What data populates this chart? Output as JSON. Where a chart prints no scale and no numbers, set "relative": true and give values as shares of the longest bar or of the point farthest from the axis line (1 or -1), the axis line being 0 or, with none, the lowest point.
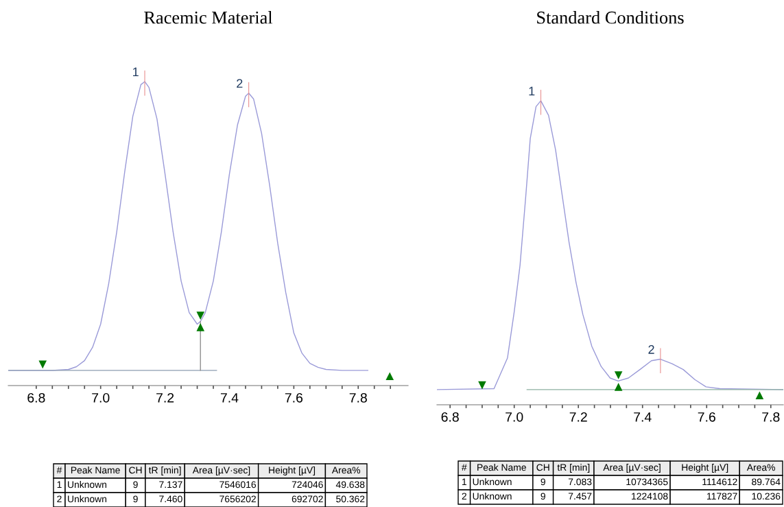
{
  "chart_data": [
    {
      "type": "line",
      "title": "Racemic Material",
      "relative": true,
      "tick_labels": "x",
      "xlim": [
        6.713,
        7.955
      ],
      "xticks": [
        {
          "value": 6.8,
          "label": "6.8"
        },
        {
          "value": 6.85,
          "label": null
        },
        {
          "value": 6.9,
          "label": null
        },
        {
          "value": 6.95,
          "label": null
        },
        {
          "value": 7.0,
          "label": "7.0"
        },
        {
          "value": 7.05,
          "label": null
        },
        {
          "value": 7.1,
          "label": null
        },
        {
          "value": 7.15,
          "label": null
        },
        {
          "value": 7.2,
          "label": "7.2"
        },
        {
          "value": 7.25,
          "label": null
        },
        {
          "value": 7.3,
          "label": null
        },
        {
          "value": 7.35,
          "label": null
        },
        {
          "value": 7.4,
          "label": "7.4"
        },
        {
          "value": 7.45,
          "label": null
        },
        {
          "value": 7.5,
          "label": null
        },
        {
          "value": 7.55,
          "label": null
        },
        {
          "value": 7.6,
          "label": "7.6"
        },
        {
          "value": 7.65,
          "label": null
        },
        {
          "value": 7.7,
          "label": null
        },
        {
          "value": 7.75,
          "label": null
        },
        {
          "value": 7.8,
          "label": "7.8"
        },
        {
          "value": 7.85,
          "label": null
        },
        {
          "value": 7.9,
          "label": null
        }
      ],
      "series": [
        {
          "color": "#9a9ad8",
          "x": [
            6.713,
            6.85,
            6.9,
            6.925,
            6.95,
            6.975,
            7.0,
            7.025,
            7.05,
            7.075,
            7.1,
            7.125,
            7.137,
            7.15,
            7.175,
            7.2,
            7.225,
            7.25,
            7.275,
            7.3,
            7.31,
            7.325,
            7.35,
            7.375,
            7.4,
            7.425,
            7.45,
            7.46,
            7.475,
            7.5,
            7.525,
            7.55,
            7.575,
            7.6,
            7.625,
            7.65,
            7.675,
            7.7,
            7.75,
            7.83
          ],
          "values": [
            0.05,
            0.05,
            0.053,
            0.062,
            0.082,
            0.126,
            0.202,
            0.335,
            0.506,
            0.705,
            0.886,
            0.99,
            1.0,
            0.981,
            0.877,
            0.696,
            0.506,
            0.344,
            0.24,
            0.202,
            0.211,
            0.24,
            0.344,
            0.506,
            0.696,
            0.857,
            0.952,
            0.962,
            0.943,
            0.829,
            0.658,
            0.468,
            0.306,
            0.173,
            0.107,
            0.073,
            0.06,
            0.053,
            0.05,
            0.05
          ]
        },
        {
          "color": "#8c9cb0",
          "x": [
            6.713,
            7.36
          ],
          "values": [
            0.05,
            0.05
          ]
        },
        {
          "color": "#909090",
          "x": [
            7.31,
            7.31
          ],
          "values": [
            0.05,
            0.211
          ]
        },
        {
          "type": "scatter",
          "marker": "triangle_down",
          "color": "#007a00",
          "x": [
            6.82,
            7.31
          ],
          "values": [
            0.069,
            0.23
          ]
        },
        {
          "type": "scatter",
          "marker": "triangle",
          "color": "#007a00",
          "x": [
            7.31,
            7.898
          ],
          "values": [
            0.192,
            0.031
          ]
        }
      ],
      "annotations": [
        {
          "text": "1",
          "x": 7.137,
          "y": 1.0
        },
        {
          "text": "2",
          "x": 7.46,
          "y": 0.962
        },
        "#",
        "Peak Name",
        "CH",
        "tR [min]",
        "Area [µV·sec]",
        "Height [µV]",
        "Area%",
        "1",
        "Unknown",
        "9",
        "7.137",
        "7546016",
        "724046",
        "49.638",
        "2",
        "Unknown",
        "9",
        "7.460",
        "7656202",
        "692702",
        "50.362"
      ]
    },
    {
      "type": "line",
      "title": "Standard Conditions",
      "relative": true,
      "tick_labels": "x",
      "xlim": [
        6.759,
        7.839
      ],
      "xticks": [
        {
          "value": 6.8,
          "label": "6.8"
        },
        {
          "value": 6.85,
          "label": null
        },
        {
          "value": 6.9,
          "label": null
        },
        {
          "value": 6.95,
          "label": null
        },
        {
          "value": 7.0,
          "label": "7.0"
        },
        {
          "value": 7.05,
          "label": null
        },
        {
          "value": 7.1,
          "label": null
        },
        {
          "value": 7.15,
          "label": null
        },
        {
          "value": 7.2,
          "label": "7.2"
        },
        {
          "value": 7.25,
          "label": null
        },
        {
          "value": 7.3,
          "label": null
        },
        {
          "value": 7.35,
          "label": null
        },
        {
          "value": 7.4,
          "label": "7.4"
        },
        {
          "value": 7.45,
          "label": null
        },
        {
          "value": 7.5,
          "label": null
        },
        {
          "value": 7.55,
          "label": null
        },
        {
          "value": 7.6,
          "label": "7.6"
        },
        {
          "value": 7.65,
          "label": null
        },
        {
          "value": 7.7,
          "label": null
        },
        {
          "value": 7.75,
          "label": null
        },
        {
          "value": 7.8,
          "label": "7.8"
        }
      ],
      "series": [
        {
          "color": "#9a9ad8",
          "x": [
            6.759,
            6.937,
            6.979,
            7.0,
            7.018,
            7.036,
            7.05,
            7.068,
            7.083,
            7.107,
            7.129,
            7.15,
            7.171,
            7.193,
            7.214,
            7.242,
            7.271,
            7.299,
            7.324,
            7.356,
            7.392,
            7.428,
            7.456,
            7.492,
            7.527,
            7.563,
            7.598,
            7.641,
            7.839
          ],
          "values": [
            0.05,
            0.053,
            0.154,
            0.306,
            0.458,
            0.686,
            0.876,
            0.981,
            1.0,
            0.952,
            0.838,
            0.686,
            0.534,
            0.401,
            0.297,
            0.192,
            0.126,
            0.088,
            0.078,
            0.088,
            0.116,
            0.145,
            0.15,
            0.135,
            0.116,
            0.083,
            0.059,
            0.053,
            0.05
          ]
        },
        {
          "color": "#8cb0a0",
          "x": [
            7.04,
            7.839
          ],
          "values": [
            0.05,
            0.05
          ]
        },
        {
          "type": "scatter",
          "marker": "triangle_down",
          "color": "#007a00",
          "x": [
            6.9,
            7.325
          ],
          "values": [
            0.064,
            0.097
          ]
        },
        {
          "type": "scatter",
          "marker": "triangle",
          "color": "#007a00",
          "x": [
            7.325,
            7.765
          ],
          "values": [
            0.059,
            0.031
          ]
        }
      ],
      "annotations": [
        {
          "text": "1",
          "x": 7.083,
          "y": 1.0
        },
        {
          "text": "2",
          "x": 7.456,
          "y": 0.15
        },
        "#",
        "Peak Name",
        "CH",
        "tR [min]",
        "Area [µV·sec]",
        "Height [µV]",
        "Area%",
        "1",
        "Unknown",
        "9",
        "7.083",
        "10734365",
        "1114612",
        "89.764",
        "2",
        "Unknown",
        "9",
        "7.457",
        "1224108",
        "117827",
        "10.236"
      ]
    }
  ]
}
